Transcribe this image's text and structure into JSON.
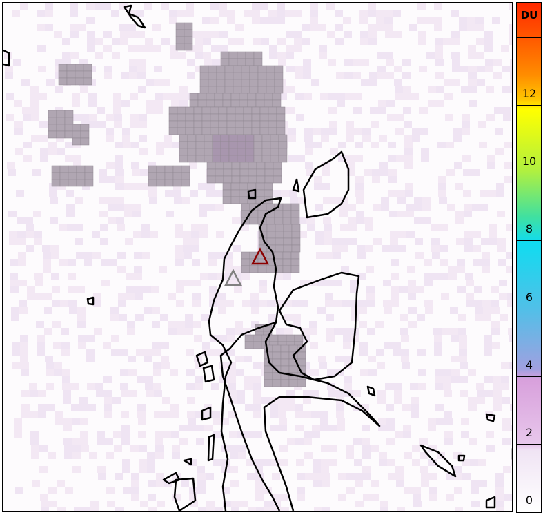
{
  "map": {
    "markers": [
      {
        "name": "volcano-active",
        "color": "#8b0000"
      },
      {
        "name": "volcano-other",
        "color": "#808080"
      }
    ],
    "plume_color": "#b0a6b2",
    "background_color": "#fdfbfd"
  },
  "colorbar": {
    "unit": "DU",
    "min": 0,
    "max": 15,
    "tick_labels": [
      "0",
      "2",
      "4",
      "6",
      "8",
      "10",
      "12"
    ],
    "colors": [
      "#ffffff",
      "#d8a0dc",
      "#a0a0e0",
      "#10dcf0",
      "#40e0a0",
      "#ffff00",
      "#ff8c00",
      "#ff2a00"
    ]
  }
}
